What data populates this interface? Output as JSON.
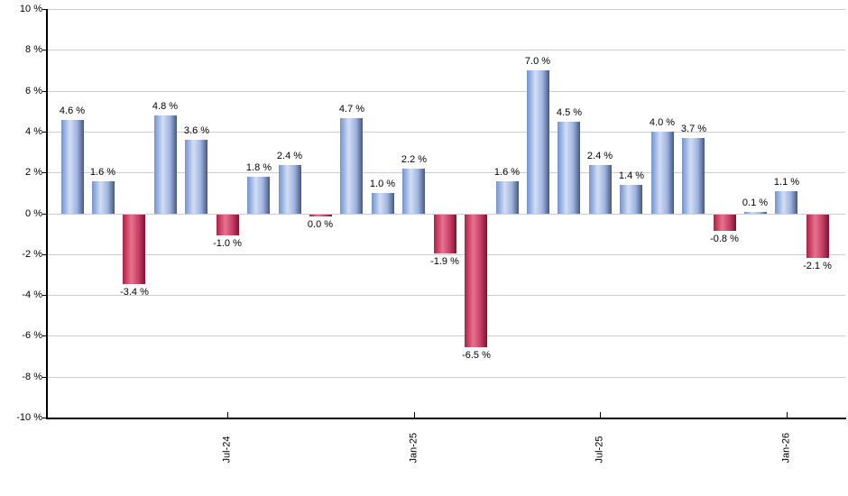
{
  "chart_data": {
    "type": "bar",
    "title": "",
    "xlabel": "",
    "ylabel": "",
    "ylim": [
      -10,
      10
    ],
    "grid": true,
    "y_ticks": [
      {
        "v": 10,
        "label": "10 %"
      },
      {
        "v": 8,
        "label": "8 %"
      },
      {
        "v": 6,
        "label": "6 %"
      },
      {
        "v": 4,
        "label": "4 %"
      },
      {
        "v": 2,
        "label": "2 %"
      },
      {
        "v": 0,
        "label": "0 %"
      },
      {
        "v": -2,
        "label": "-2 %"
      },
      {
        "v": -4,
        "label": "-4 %"
      },
      {
        "v": -6,
        "label": "-6 %"
      },
      {
        "v": -8,
        "label": "-8 %"
      },
      {
        "v": -10,
        "label": "-10 %"
      }
    ],
    "x_ticks": [
      {
        "bar_index": 5,
        "label": "Jul-24"
      },
      {
        "bar_index": 11,
        "label": "Jan-25"
      },
      {
        "bar_index": 17,
        "label": "Jul-25"
      },
      {
        "bar_index": 23,
        "label": "Jan-26"
      }
    ],
    "bars": [
      {
        "value": 4.6,
        "label": "4.6 %",
        "sign": "positive"
      },
      {
        "value": 1.6,
        "label": "1.6 %",
        "sign": "positive"
      },
      {
        "value": -3.4,
        "label": "-3.4 %",
        "sign": "negative"
      },
      {
        "value": 4.8,
        "label": "4.8 %",
        "sign": "positive"
      },
      {
        "value": 3.6,
        "label": "3.6 %",
        "sign": "positive"
      },
      {
        "value": -1.0,
        "label": "-1.0 %",
        "sign": "negative"
      },
      {
        "value": 1.8,
        "label": "1.8 %",
        "sign": "positive"
      },
      {
        "value": 2.4,
        "label": "2.4 %",
        "sign": "positive"
      },
      {
        "value": 0.0,
        "label": "0.0 %",
        "sign": "negative"
      },
      {
        "value": 4.7,
        "label": "4.7 %",
        "sign": "positive"
      },
      {
        "value": 1.0,
        "label": "1.0 %",
        "sign": "positive"
      },
      {
        "value": 2.2,
        "label": "2.2 %",
        "sign": "positive"
      },
      {
        "value": -1.9,
        "label": "-1.9 %",
        "sign": "negative"
      },
      {
        "value": -6.5,
        "label": "-6.5 %",
        "sign": "negative"
      },
      {
        "value": 1.6,
        "label": "1.6 %",
        "sign": "positive"
      },
      {
        "value": 7.0,
        "label": "7.0 %",
        "sign": "positive"
      },
      {
        "value": 4.5,
        "label": "4.5 %",
        "sign": "positive"
      },
      {
        "value": 2.4,
        "label": "2.4 %",
        "sign": "positive"
      },
      {
        "value": 1.4,
        "label": "1.4 %",
        "sign": "positive"
      },
      {
        "value": 4.0,
        "label": "4.0 %",
        "sign": "positive"
      },
      {
        "value": 3.7,
        "label": "3.7 %",
        "sign": "positive"
      },
      {
        "value": -0.8,
        "label": "-0.8 %",
        "sign": "negative"
      },
      {
        "value": 0.1,
        "label": "0.1 %",
        "sign": "positive"
      },
      {
        "value": 1.1,
        "label": "1.1 %",
        "sign": "positive"
      },
      {
        "value": -2.1,
        "label": "-2.1 %",
        "sign": "negative"
      }
    ],
    "colors": {
      "positive_edge": "#7193cf",
      "positive_light": "#d2def5",
      "positive_dark": "#47587e",
      "negative_edge": "#b02045",
      "negative_light": "#e8728f",
      "negative_dark": "#7d132f",
      "gridline": "#cccccc",
      "axis": "#000000",
      "text": "#000000"
    }
  }
}
